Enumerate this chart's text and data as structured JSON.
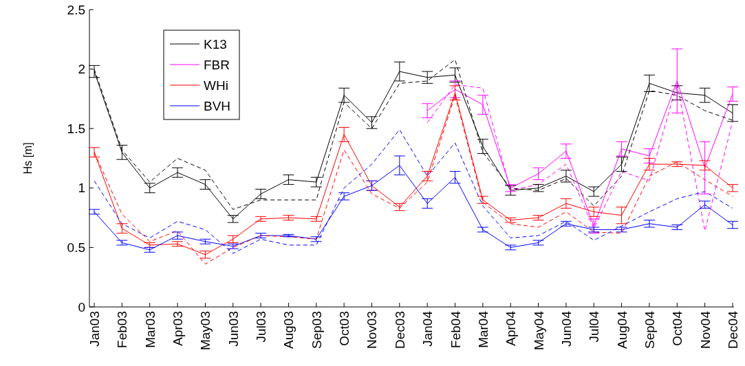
{
  "chart_data": {
    "type": "line",
    "ylabel": "Hs [m]",
    "categories": [
      "Jan03",
      "Feb03",
      "Mar03",
      "Apr03",
      "May03",
      "Jun03",
      "Jul03",
      "Aug03",
      "Sep03",
      "Oct03",
      "Nov03",
      "Dec03",
      "Jan04",
      "Feb04",
      "Mar04",
      "Apr04",
      "May04",
      "Jun04",
      "Jul04",
      "Aug04",
      "Sep04",
      "Oct04",
      "Nov04",
      "Dec04"
    ],
    "ylim": [
      0,
      2.5
    ],
    "yticks": [
      0,
      0.5,
      1,
      1.5,
      2,
      2.5
    ],
    "legend": "top left",
    "grid": false,
    "series": [
      {
        "name": "K13",
        "color": "#000000",
        "line_style": "solid",
        "values": [
          1.98,
          1.3,
          1.0,
          1.13,
          1.03,
          0.74,
          0.95,
          1.07,
          1.05,
          1.78,
          1.55,
          1.98,
          1.93,
          1.95,
          1.35,
          0.98,
          1.0,
          1.1,
          0.97,
          1.2,
          1.88,
          1.8,
          1.78,
          1.63
        ],
        "errors": [
          0.05,
          0.06,
          0.04,
          0.04,
          0.04,
          0.03,
          0.04,
          0.04,
          0.04,
          0.06,
          0.05,
          0.08,
          0.05,
          0.06,
          0.06,
          0.04,
          0.03,
          0.05,
          0.04,
          0.06,
          0.07,
          0.06,
          0.06,
          0.07
        ]
      },
      {
        "name": "FBR",
        "color": "#ff00ff",
        "line_style": "solid",
        "values": [
          null,
          null,
          null,
          null,
          null,
          null,
          null,
          null,
          null,
          null,
          null,
          null,
          1.65,
          1.83,
          1.7,
          1.0,
          1.12,
          1.31,
          0.68,
          1.33,
          1.27,
          1.9,
          1.17,
          1.79
        ],
        "errors": [
          null,
          null,
          null,
          null,
          null,
          null,
          null,
          null,
          null,
          null,
          null,
          null,
          0.06,
          0.07,
          0.08,
          0.03,
          0.05,
          0.06,
          0.06,
          0.06,
          0.06,
          0.27,
          0.22,
          0.06
        ]
      },
      {
        "name": "WHi",
        "color": "#ff0000",
        "line_style": "solid",
        "values": [
          1.3,
          0.66,
          0.52,
          0.53,
          0.44,
          0.57,
          0.74,
          0.75,
          0.74,
          1.45,
          1.02,
          0.84,
          1.1,
          1.8,
          0.9,
          0.73,
          0.75,
          0.87,
          0.8,
          0.77,
          1.2,
          1.2,
          1.19,
          1.0
        ],
        "errors": [
          0.04,
          0.04,
          0.02,
          0.02,
          0.03,
          0.03,
          0.02,
          0.02,
          0.02,
          0.06,
          0.04,
          0.03,
          0.04,
          0.06,
          0.03,
          0.02,
          0.02,
          0.04,
          0.04,
          0.07,
          0.05,
          0.02,
          0.04,
          0.03
        ]
      },
      {
        "name": "BVH",
        "color": "#0000ff",
        "line_style": "solid",
        "values": [
          0.8,
          0.54,
          0.48,
          0.6,
          0.55,
          0.51,
          0.6,
          0.6,
          0.57,
          0.93,
          1.02,
          1.19,
          0.87,
          1.09,
          0.65,
          0.5,
          0.54,
          0.7,
          0.65,
          0.65,
          0.7,
          0.67,
          0.86,
          0.69
        ],
        "errors": [
          0.02,
          0.02,
          0.02,
          0.03,
          0.02,
          0.02,
          0.02,
          0.01,
          0.02,
          0.03,
          0.04,
          0.08,
          0.04,
          0.05,
          0.02,
          0.02,
          0.02,
          0.02,
          0.02,
          0.02,
          0.03,
          0.02,
          0.03,
          0.03
        ]
      },
      {
        "color": "#000000",
        "line_style": "dashed",
        "values": [
          2.0,
          1.32,
          1.05,
          1.25,
          1.15,
          0.82,
          0.9,
          0.9,
          0.9,
          1.72,
          1.5,
          1.88,
          1.9,
          2.08,
          1.3,
          1.0,
          0.98,
          1.08,
          0.85,
          1.1,
          1.82,
          1.78,
          1.65,
          1.57
        ]
      },
      {
        "color": "#ff00ff",
        "line_style": "dashed",
        "values": [
          null,
          null,
          null,
          null,
          null,
          null,
          null,
          null,
          null,
          null,
          null,
          null,
          1.55,
          1.87,
          1.84,
          0.98,
          1.03,
          1.2,
          0.66,
          1.14,
          1.06,
          1.88,
          0.64,
          1.56
        ]
      },
      {
        "color": "#ff0000",
        "line_style": "dashed",
        "values": [
          1.3,
          0.78,
          0.55,
          0.64,
          0.36,
          0.5,
          0.6,
          0.59,
          0.57,
          1.32,
          0.95,
          0.83,
          1.05,
          1.78,
          0.88,
          0.7,
          0.67,
          0.8,
          0.63,
          0.62,
          1.1,
          1.22,
          1.07,
          0.93
        ]
      },
      {
        "color": "#0000ff",
        "line_style": "dashed",
        "values": [
          1.06,
          0.7,
          0.58,
          0.72,
          0.65,
          0.45,
          0.57,
          0.52,
          0.52,
          1.0,
          1.2,
          1.49,
          1.1,
          1.38,
          0.85,
          0.58,
          0.6,
          0.72,
          0.56,
          0.68,
          0.8,
          0.91,
          0.97,
          0.83
        ]
      }
    ]
  }
}
